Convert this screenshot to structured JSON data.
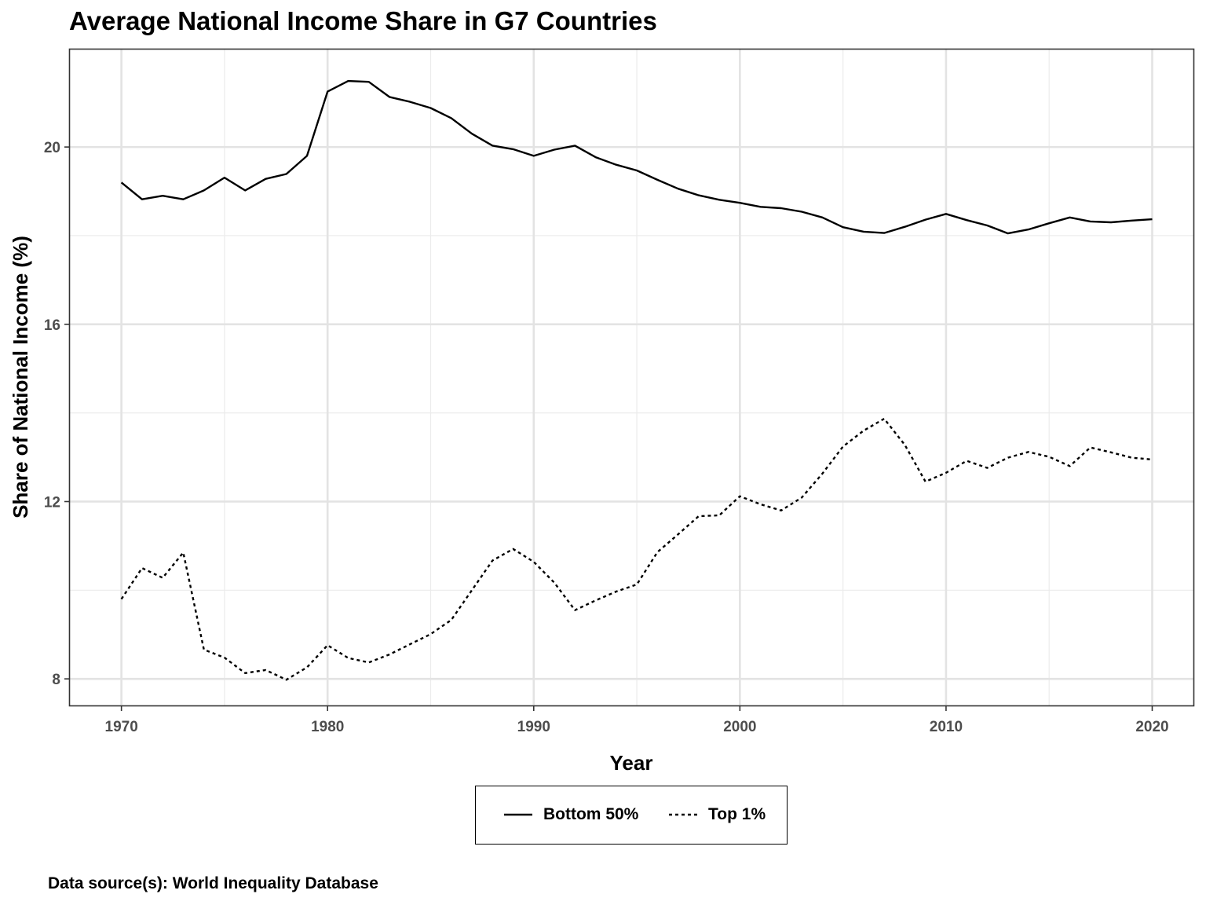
{
  "chart_data": {
    "type": "line",
    "title": "Average National Income Share in G7 Countries",
    "xlabel": "Year",
    "ylabel": "Share of National Income (%)",
    "caption": "Data source(s): World Inequality Database",
    "xlim": [
      1967.5,
      2022.0
    ],
    "ylim": [
      7.4,
      22.2
    ],
    "x_ticks": [
      1970,
      1980,
      1990,
      2000,
      2010,
      2020
    ],
    "y_ticks": [
      8,
      12,
      16,
      20
    ],
    "y_minor_gridlines": [
      10,
      14,
      18
    ],
    "x_minor_gridlines": [
      1975,
      1985,
      1995,
      2005,
      2015
    ],
    "grid": true,
    "legend_position": "bottom",
    "x": [
      1970,
      1971,
      1972,
      1973,
      1974,
      1975,
      1976,
      1977,
      1978,
      1979,
      1980,
      1981,
      1982,
      1983,
      1984,
      1985,
      1986,
      1987,
      1988,
      1989,
      1990,
      1991,
      1992,
      1993,
      1994,
      1995,
      1996,
      1997,
      1998,
      1999,
      2000,
      2001,
      2002,
      2003,
      2004,
      2005,
      2006,
      2007,
      2008,
      2009,
      2010,
      2011,
      2012,
      2013,
      2014,
      2015,
      2016,
      2017,
      2018,
      2019,
      2020
    ],
    "series": [
      {
        "name": "Bottom 50%",
        "dash": "solid",
        "color": "#000000",
        "values": [
          19.2,
          18.82,
          18.9,
          18.82,
          19.02,
          19.31,
          19.02,
          19.28,
          19.39,
          19.8,
          21.25,
          21.49,
          21.47,
          21.13,
          21.02,
          20.88,
          20.65,
          20.3,
          20.03,
          19.95,
          19.8,
          19.94,
          20.03,
          19.77,
          19.6,
          19.47,
          19.26,
          19.06,
          18.91,
          18.81,
          18.74,
          18.65,
          18.62,
          18.54,
          18.41,
          18.19,
          18.09,
          18.06,
          18.2,
          18.36,
          18.49,
          18.35,
          18.23,
          18.05,
          18.14,
          18.28,
          18.41,
          18.32,
          18.3,
          18.34,
          18.37
        ]
      },
      {
        "name": "Top 1%",
        "dash": "dotted",
        "color": "#000000",
        "values": [
          9.8,
          10.5,
          10.28,
          10.85,
          8.66,
          8.48,
          8.13,
          8.2,
          7.98,
          8.26,
          8.76,
          8.47,
          8.37,
          8.55,
          8.78,
          9.01,
          9.33,
          10.0,
          10.67,
          10.93,
          10.64,
          10.17,
          9.55,
          9.77,
          9.97,
          10.13,
          10.86,
          11.26,
          11.67,
          11.69,
          12.12,
          11.94,
          11.8,
          12.09,
          12.63,
          13.24,
          13.6,
          13.87,
          13.28,
          12.45,
          12.65,
          12.92,
          12.76,
          12.99,
          13.12,
          13.01,
          12.8,
          13.22,
          13.11,
          12.99,
          12.95
        ]
      }
    ]
  }
}
